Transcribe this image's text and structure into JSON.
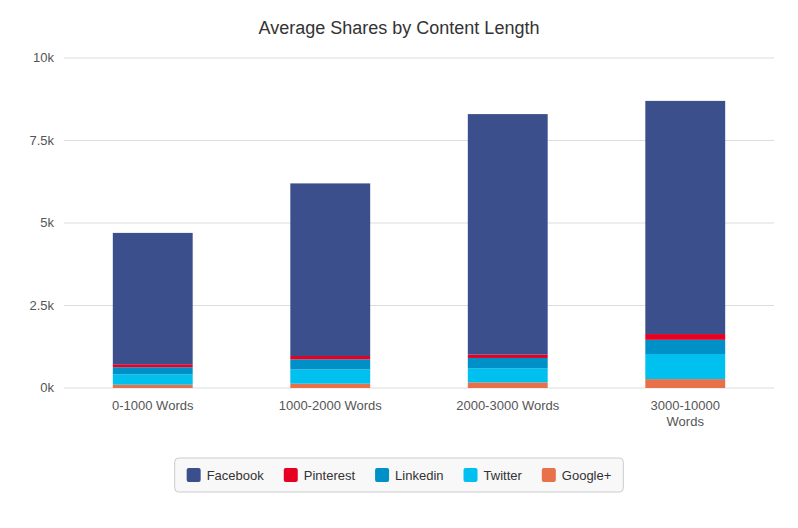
{
  "chart_data": {
    "type": "bar",
    "title": "Average Shares by Content Length",
    "categories": [
      "0-1000 Words",
      "1000-2000 Words",
      "2000-3000 Words",
      "3000-10000\nWords"
    ],
    "series": [
      {
        "name": "Google+",
        "color": "#e8714a",
        "values": [
          100,
          130,
          170,
          270
        ]
      },
      {
        "name": "Twitter",
        "color": "#00c0f0",
        "values": [
          310,
          430,
          430,
          760
        ]
      },
      {
        "name": "Linkedin",
        "color": "#0090c8",
        "values": [
          220,
          310,
          310,
          430
        ]
      },
      {
        "name": "Pinterest",
        "color": "#e60023",
        "values": [
          90,
          100,
          100,
          175
        ]
      },
      {
        "name": "Facebook",
        "color": "#3b4f8c",
        "values": [
          3980,
          5230,
          7290,
          7065
        ]
      }
    ],
    "stacked": true,
    "ylim": [
      0,
      10000
    ],
    "yticks": [
      {
        "value": 0,
        "label": "0k"
      },
      {
        "value": 2500,
        "label": "2.5k"
      },
      {
        "value": 5000,
        "label": "5k"
      },
      {
        "value": 7500,
        "label": "7.5k"
      },
      {
        "value": 10000,
        "label": "10k"
      }
    ],
    "grid": true,
    "legend": "bottom"
  }
}
